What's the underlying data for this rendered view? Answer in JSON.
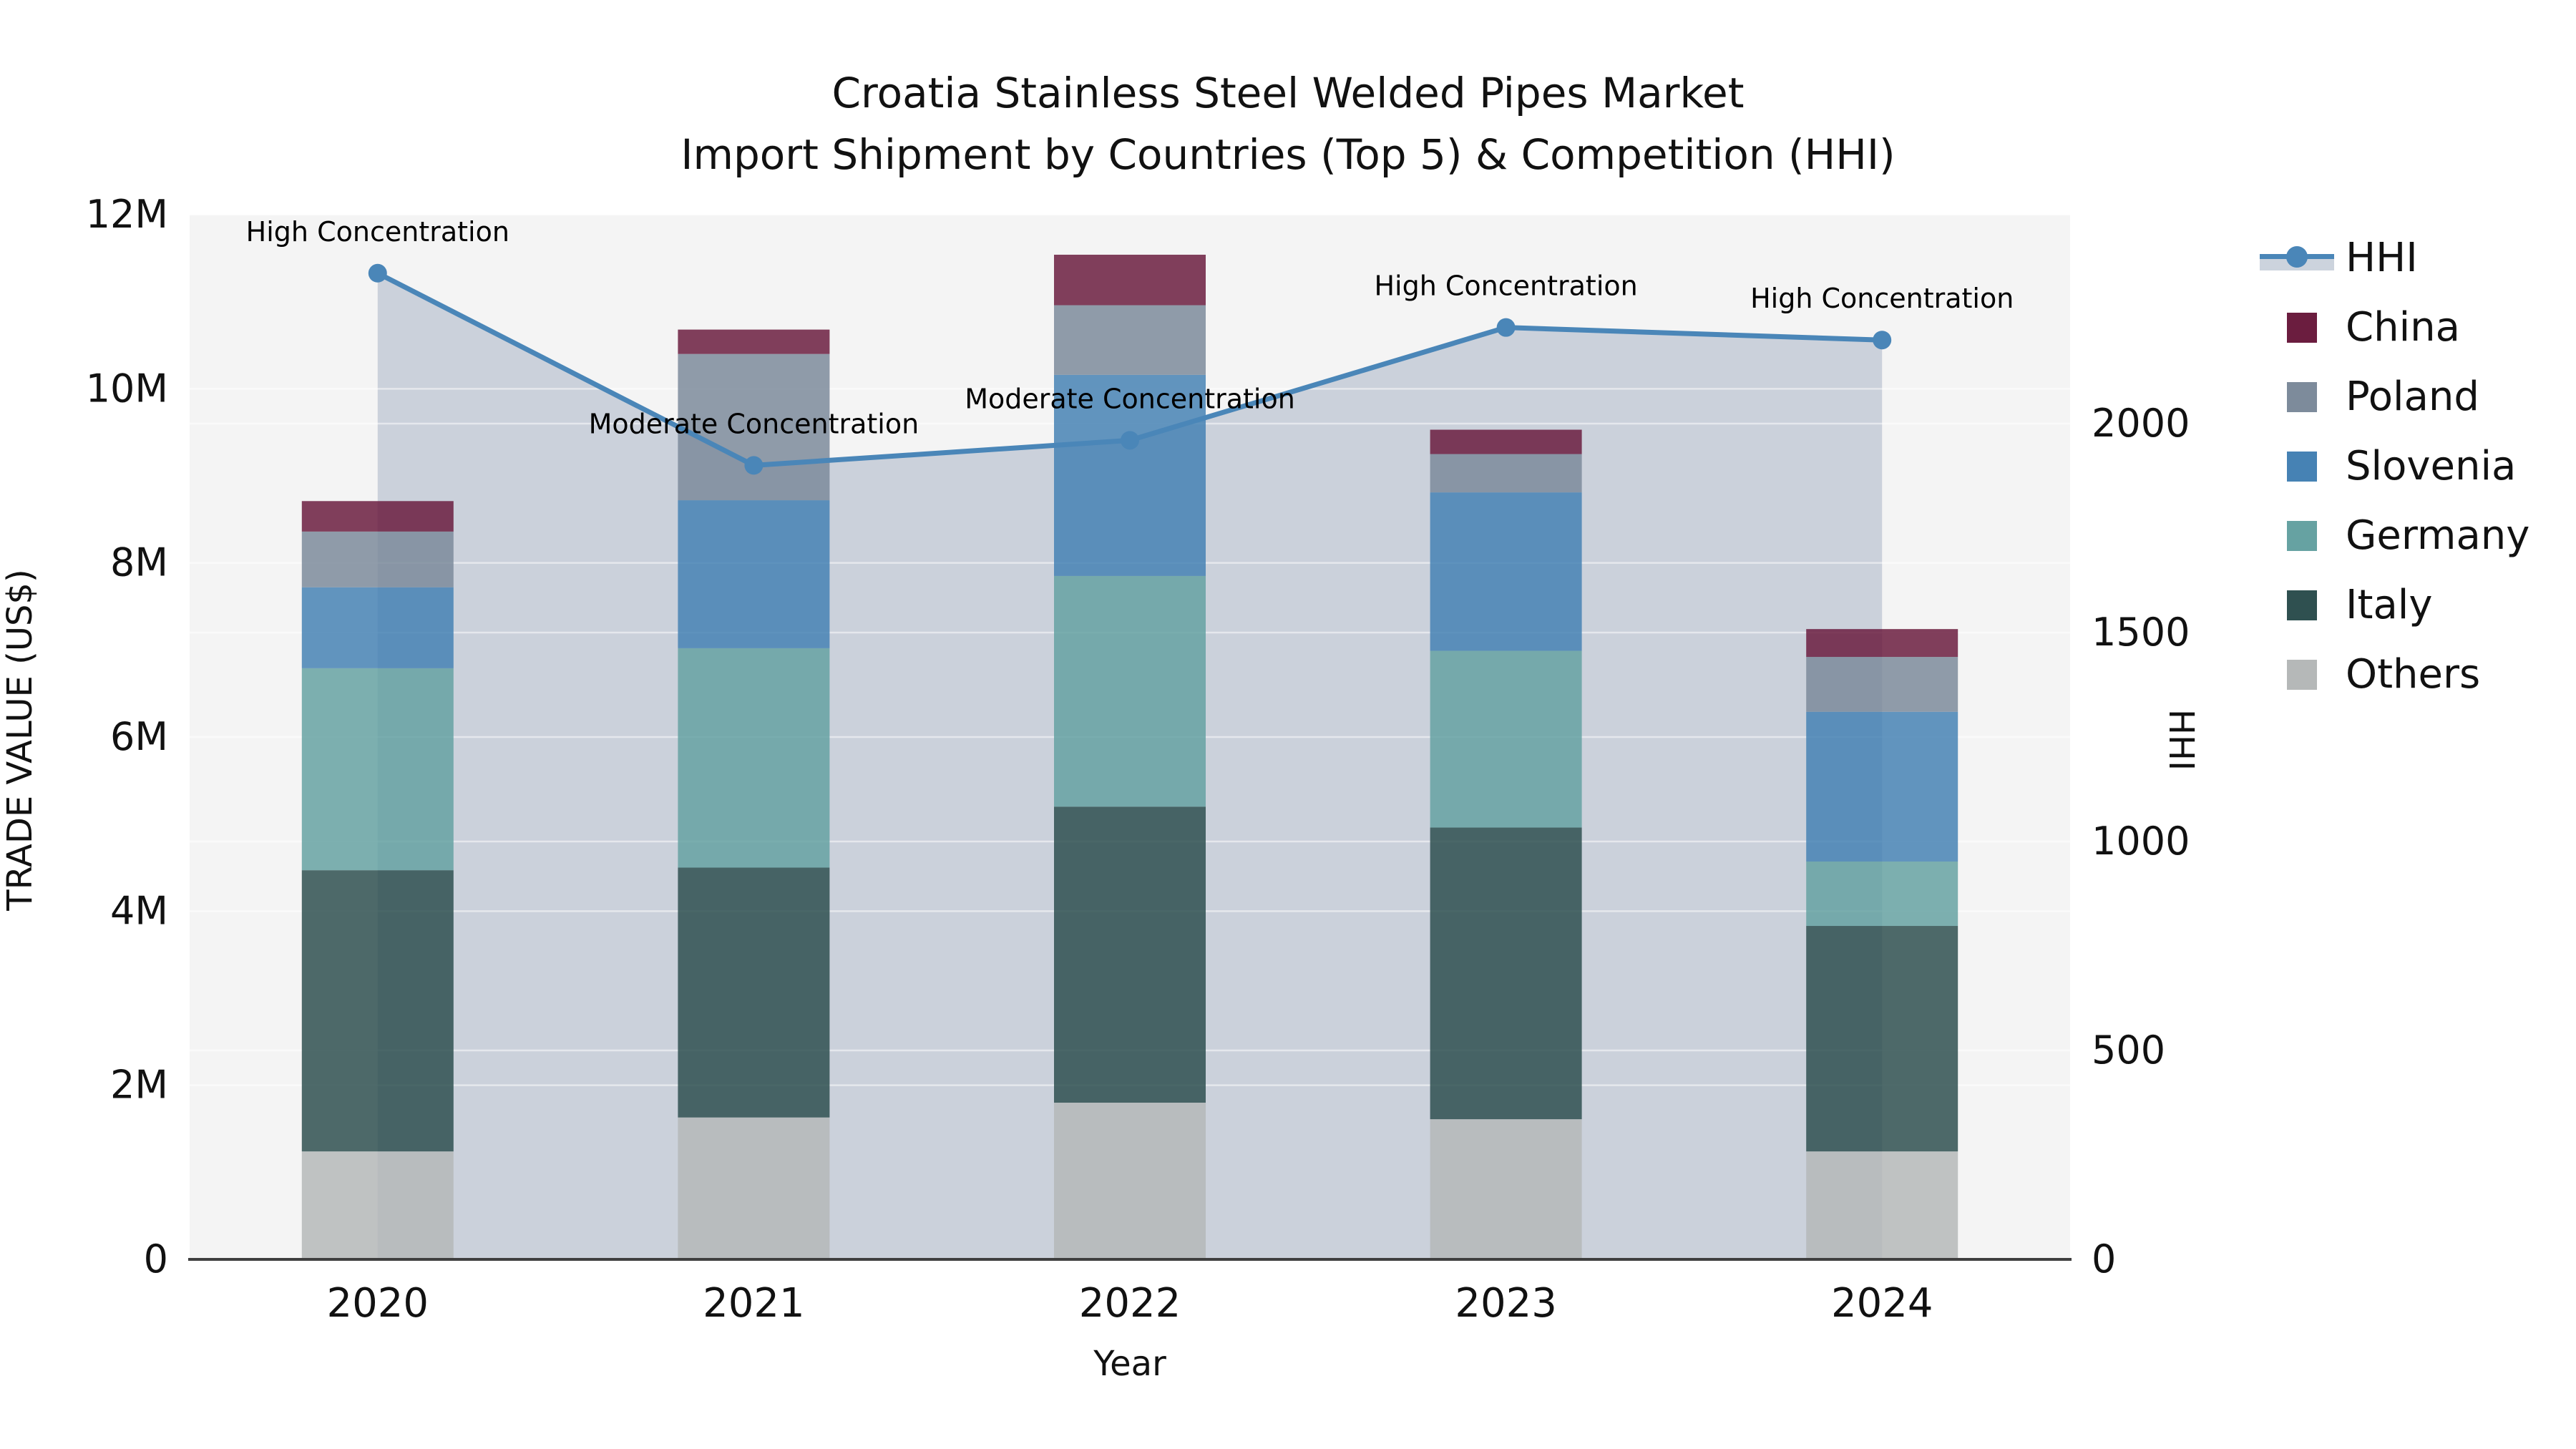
{
  "title": {
    "line1": "Croatia Stainless Steel Welded Pipes Market",
    "line2": "Import Shipment by Countries (Top 5) & Competition (HHI)"
  },
  "axes": {
    "x": {
      "label": "Year",
      "tick_labels": [
        "2020",
        "2021",
        "2022",
        "2023",
        "2024"
      ]
    },
    "y_left": {
      "label": "TRADE VALUE (US$)",
      "tick_labels": [
        "0",
        "2M",
        "4M",
        "6M",
        "8M",
        "10M",
        "12M"
      ],
      "tick_values_musd": [
        0,
        2,
        4,
        6,
        8,
        10,
        12
      ],
      "axis_max_musd": 12
    },
    "y_right": {
      "label": "HHI",
      "tick_labels": [
        "0",
        "500",
        "1000",
        "1500",
        "2000"
      ],
      "tick_values": [
        0,
        500,
        1000,
        1500,
        2000
      ],
      "axis_max": 2500
    }
  },
  "legend": {
    "items": [
      {
        "label": "HHI",
        "kind": "line",
        "color": "#4a86b8"
      },
      {
        "label": "China",
        "kind": "swatch",
        "color": "#6b1d3f"
      },
      {
        "label": "Poland",
        "kind": "swatch",
        "color": "#7d8b9b"
      },
      {
        "label": "Slovenia",
        "kind": "swatch",
        "color": "#4682b4"
      },
      {
        "label": "Germany",
        "kind": "swatch",
        "color": "#66a2a2"
      },
      {
        "label": "Italy",
        "kind": "swatch",
        "color": "#2f5050"
      },
      {
        "label": "Others",
        "kind": "swatch",
        "color": "#b5b8b8"
      }
    ]
  },
  "colors": {
    "plot_background": "#f4f4f4",
    "page_background": "#ffffff",
    "gridline": "rgba(255,255,255,0.5)",
    "axis_line": "#3f3f3f",
    "hhi_line": "#4a86b8",
    "hhi_area_fill": "#c9cfda",
    "annotation_text": "#000000",
    "tick_text": "#111111"
  },
  "chart_data": {
    "type": "combo: stacked bar (trade value, left axis) + line with shaded area (HHI, right axis)",
    "categories": [
      "2020",
      "2021",
      "2022",
      "2023",
      "2024"
    ],
    "bar_units": "million US$",
    "series": [
      {
        "name": "Others",
        "color": "#b5b8b8",
        "values_musd": [
          1.24,
          1.63,
          1.8,
          1.61,
          1.24
        ]
      },
      {
        "name": "Italy",
        "color": "#2f5050",
        "values_musd": [
          3.23,
          2.87,
          3.4,
          3.35,
          2.59
        ]
      },
      {
        "name": "Germany",
        "color": "#66a2a2",
        "values_musd": [
          2.32,
          2.52,
          2.65,
          2.03,
          0.74
        ]
      },
      {
        "name": "Slovenia",
        "color": "#4682b4",
        "values_musd": [
          0.93,
          1.7,
          2.31,
          1.82,
          1.72
        ]
      },
      {
        "name": "Poland",
        "color": "#7d8b9b",
        "values_musd": [
          0.64,
          1.68,
          0.8,
          0.44,
          0.63
        ]
      },
      {
        "name": "China",
        "color": "#6b1d3f",
        "values_musd": [
          0.35,
          0.28,
          0.58,
          0.28,
          0.32
        ]
      }
    ],
    "bar_totals_musd": [
      8.71,
      10.68,
      11.54,
      9.53,
      7.24
    ],
    "hhi_line": {
      "name": "HHI",
      "values": [
        2360,
        1900,
        1960,
        2230,
        2200
      ]
    },
    "annotations": [
      {
        "year": "2020",
        "text": "High Concentration"
      },
      {
        "year": "2021",
        "text": "Moderate Concentration"
      },
      {
        "year": "2022",
        "text": "Moderate Concentration"
      },
      {
        "year": "2023",
        "text": "High Concentration"
      },
      {
        "year": "2024",
        "text": "High Concentration"
      }
    ],
    "left_axis_range_musd": [
      0,
      12
    ],
    "right_axis_range": [
      0,
      2500
    ],
    "grid": true,
    "legend_position": "right"
  }
}
